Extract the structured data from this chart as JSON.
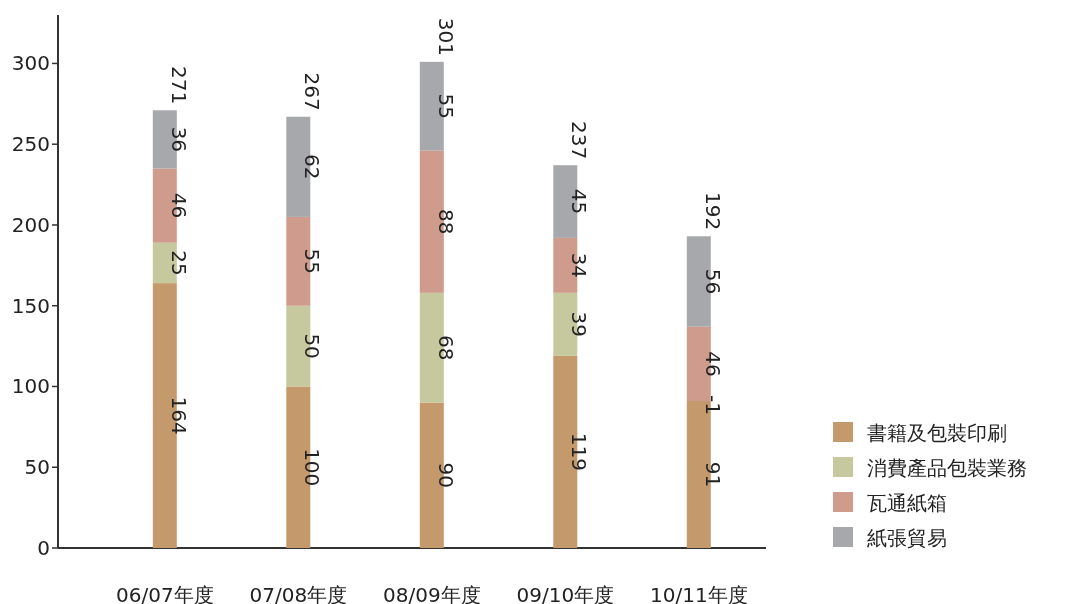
{
  "chart_data": {
    "type": "bar",
    "stacked": true,
    "categories": [
      "06/07年度",
      "07/08年度",
      "08/09年度",
      "09/10年度",
      "10/11年度"
    ],
    "series": [
      {
        "name": "書籍及包裝印刷",
        "color": "#c49a6c",
        "values": [
          164,
          100,
          90,
          119,
          91
        ]
      },
      {
        "name": "消費產品包裝業務",
        "color": "#c5c99d",
        "values": [
          25,
          50,
          68,
          39,
          null
        ]
      },
      {
        "name": "瓦通紙箱",
        "color": "#cf9b8c",
        "values": [
          46,
          55,
          88,
          34,
          46
        ]
      },
      {
        "name": "紙張貿易",
        "color": "#a7a8ac",
        "values": [
          36,
          62,
          55,
          45,
          56
        ]
      }
    ],
    "totals": [
      "271",
      "267",
      "301",
      "237",
      "192"
    ],
    "annotations": [
      {
        "text": "-1",
        "x": "10/11年度",
        "y": 91
      }
    ],
    "data_labels": true,
    "ylim": [
      0,
      330
    ],
    "yticks": [
      0,
      50,
      100,
      150,
      200,
      250,
      300
    ],
    "grid": false,
    "legend": "bottom right"
  }
}
